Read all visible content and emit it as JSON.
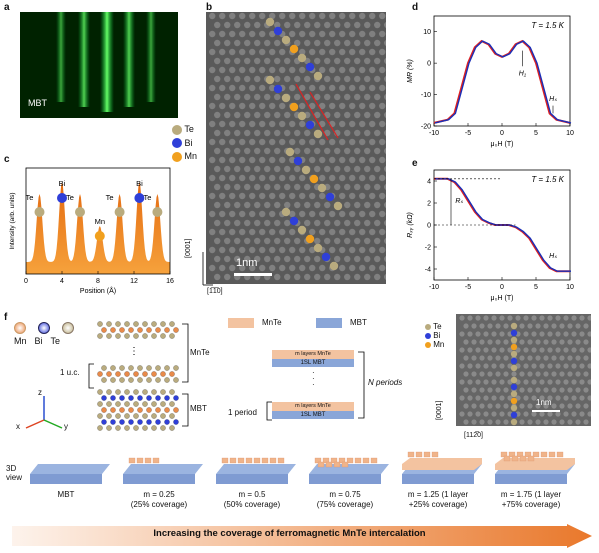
{
  "panels": {
    "a": {
      "letter": "a",
      "label": "MBT"
    },
    "b": {
      "letter": "b",
      "scalebar": "1nm",
      "axis_vertical": "[0001]",
      "axis_horizontal": "[1̅1̅0]"
    },
    "legend_b": [
      {
        "label": "Te",
        "color": "#b9ab7e"
      },
      {
        "label": "Bi",
        "color": "#2f3fd8"
      },
      {
        "label": "Mn",
        "color": "#f1a01e"
      }
    ],
    "c": {
      "letter": "c",
      "ylabel": "Intensity (arb. units)",
      "xlabel": "Position (Å)",
      "xticks": [
        "0",
        "4",
        "8",
        "12",
        "16"
      ],
      "atoms": [
        "Te",
        "Bi",
        "Te",
        "Mn",
        "Te",
        "Bi",
        "Te"
      ]
    },
    "d": {
      "letter": "d",
      "ylabel": "MR (%)",
      "xlabel": "μ₀H (T)",
      "temp": "T = 1.5 K",
      "ann1": "H₁",
      "ann2": "Hₛ",
      "xticks": [
        "-10",
        "-5",
        "0",
        "5",
        "10"
      ],
      "yticks": [
        "10",
        "0",
        "-10",
        "-20"
      ]
    },
    "e": {
      "letter": "e",
      "ylabel": "Rₓᵧ (kΩ)",
      "xlabel": "μ₀H (T)",
      "temp": "T = 1.5 K",
      "ann1": "Rₛ",
      "ann2": "Hₛ",
      "xticks": [
        "-10",
        "-5",
        "0",
        "5",
        "10"
      ],
      "yticks": [
        "4",
        "2",
        "0",
        "-2",
        "-4"
      ]
    },
    "f": {
      "letter": "f",
      "atom_legend": [
        "Mn",
        "Bi",
        "Te"
      ],
      "mnte_label": "MnTe",
      "mbt_label": "MBT",
      "uc_label": "1 u.c.",
      "axes": [
        "z",
        "x",
        "y"
      ],
      "layer_top": "MnTe",
      "layer_right": "MBT",
      "stack_m_layers": "m layers MnTe",
      "stack_1sl": "1SL MBT",
      "n_periods": "N periods",
      "one_period": "1 period",
      "stem_legend": [
        "Te",
        "Bi",
        "Mn"
      ],
      "stem_scalebar": "1nm",
      "stem_axis_v": "[0001]",
      "stem_axis_h": "[112̅0]",
      "view3d": "3D\nview",
      "coverages": [
        {
          "m": "MBT",
          "sub": ""
        },
        {
          "m": "m = 0.25",
          "sub": "(25% coverage)"
        },
        {
          "m": "m = 0.5",
          "sub": "(50% coverage)"
        },
        {
          "m": "m = 0.75",
          "sub": "(75% coverage)"
        },
        {
          "m": "m = 1.25 (1 layer",
          "sub": "+25% coverage)"
        },
        {
          "m": "m = 1.75 (1 layer",
          "sub": "+75% coverage)"
        }
      ],
      "banner": "Increasing the coverage of ferromagnetic MnTe intercalation"
    }
  },
  "chart_data": [
    {
      "type": "line",
      "panel": "c",
      "x": [
        0,
        1,
        2,
        3,
        4,
        5,
        6,
        7,
        8,
        9,
        10,
        11,
        12,
        13,
        14,
        15,
        16
      ],
      "peaks": [
        1.5,
        4.0,
        6.0,
        8.2,
        10.4,
        12.6,
        14.6
      ],
      "xlim": [
        0,
        16
      ],
      "xlabel": "Position (Å)",
      "ylabel": "Intensity (arb. units)"
    },
    {
      "type": "line",
      "panel": "d",
      "xlim": [
        -10,
        10
      ],
      "ylim": [
        -20,
        15
      ],
      "series": [
        {
          "x": [
            -10,
            -8,
            -7,
            -6,
            -5,
            -4,
            -3,
            -2,
            -1,
            0,
            1,
            2,
            3,
            4,
            5,
            6,
            7,
            8,
            10
          ],
          "y": [
            -19,
            -18,
            -16,
            -8,
            0,
            5,
            7,
            6,
            3,
            2,
            3,
            6,
            7,
            5,
            0,
            -8,
            -16,
            -18,
            -19
          ]
        }
      ],
      "xlabel": "μ₀H (T)",
      "ylabel": "MR (%)"
    },
    {
      "type": "line",
      "panel": "e",
      "xlim": [
        -10,
        10
      ],
      "ylim": [
        -5,
        5
      ],
      "series": [
        {
          "x": [
            -10,
            -8,
            -7,
            -6,
            -5,
            -4,
            -3,
            -2,
            -1,
            0,
            1,
            2,
            3,
            4,
            5,
            6,
            7,
            8,
            10
          ],
          "y": [
            4.2,
            4.2,
            3.9,
            3.2,
            2.2,
            1.2,
            0.5,
            0.2,
            0,
            0,
            0,
            -0.2,
            -0.6,
            -1.2,
            -2.2,
            -3.2,
            -3.9,
            -4.2,
            -4.2
          ]
        }
      ],
      "xlabel": "μ₀H (T)",
      "ylabel": "Rₓᵧ (kΩ)"
    }
  ]
}
